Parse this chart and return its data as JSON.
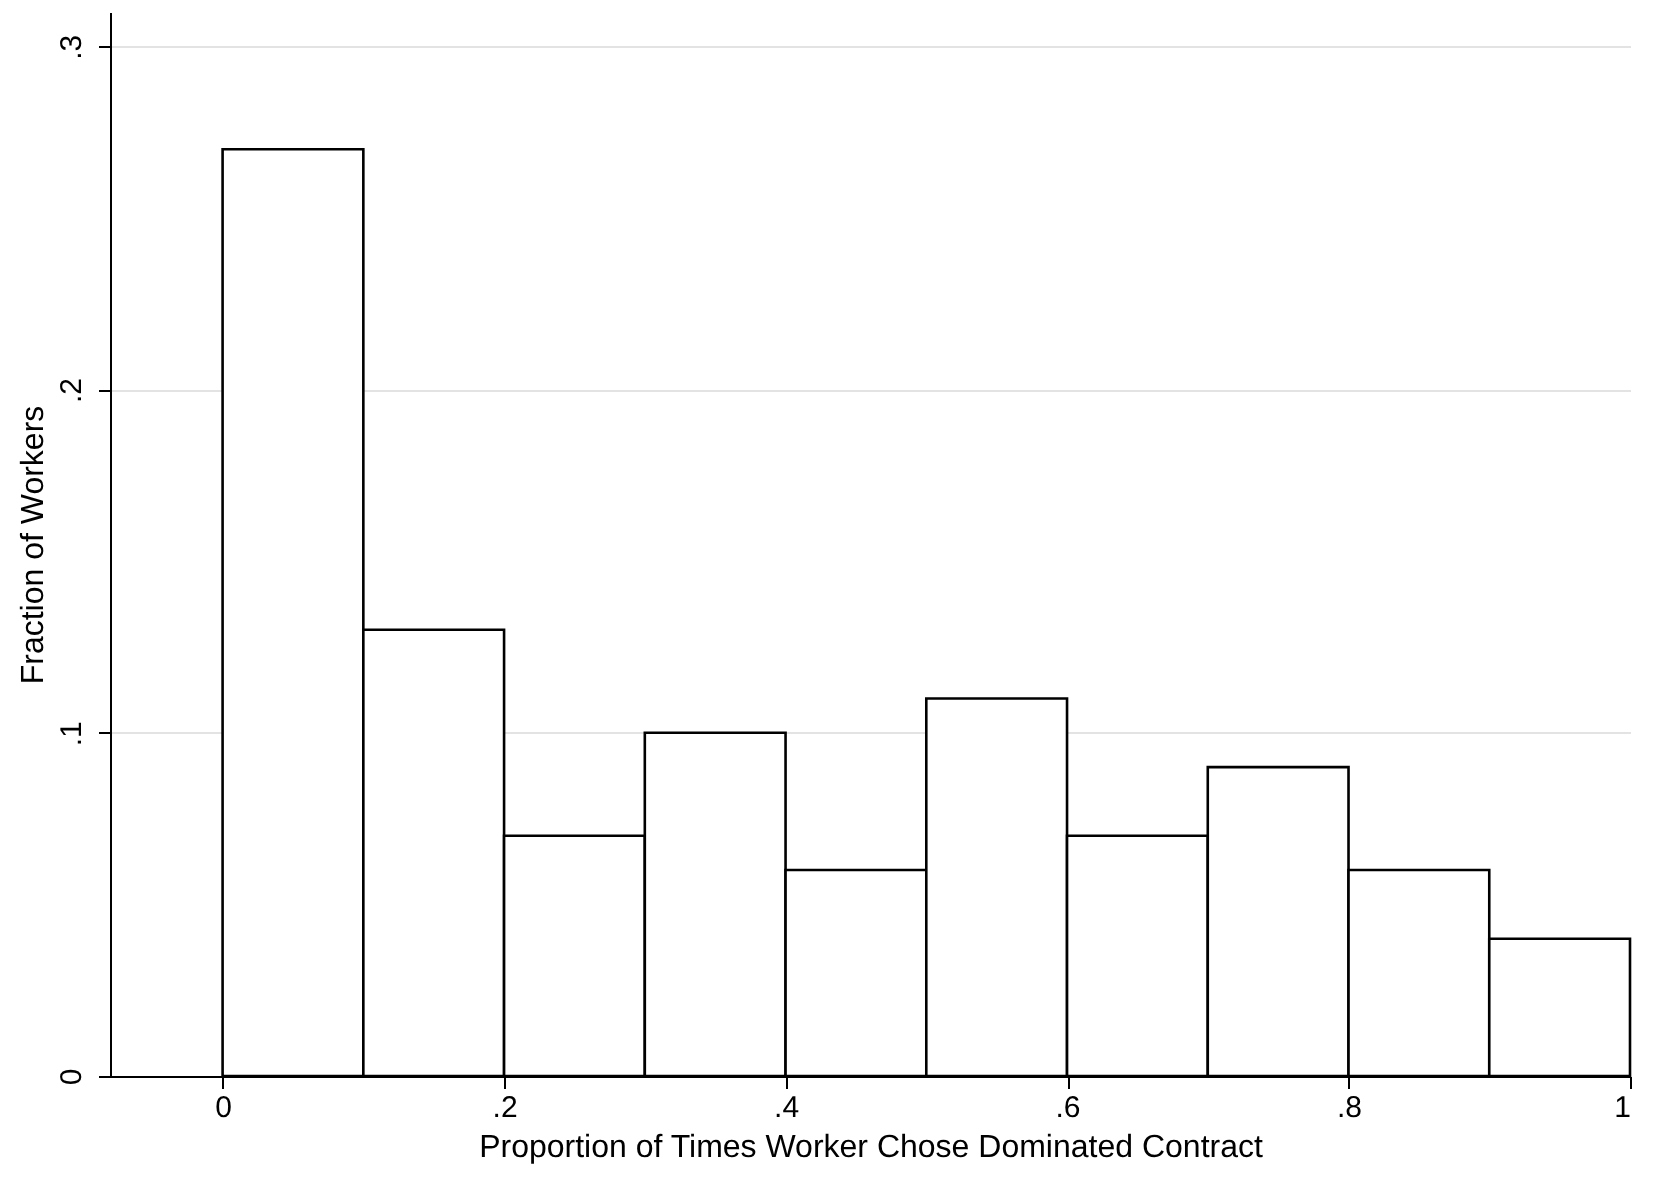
{
  "chart_data": {
    "type": "histogram",
    "xlabel": "Proportion of Times Worker Chose Dominated Contract",
    "ylabel": "Fraction of Workers",
    "bins": [
      0,
      0.1,
      0.2,
      0.3,
      0.4,
      0.5,
      0.6,
      0.7,
      0.8,
      0.9,
      1
    ],
    "values": [
      0.27,
      0.13,
      0.07,
      0.1,
      0.06,
      0.11,
      0.07,
      0.09,
      0.06,
      0.04
    ],
    "color": "#ffffff",
    "xlim": [
      -0.08,
      1
    ],
    "ylim": [
      0,
      0.31
    ],
    "xticks": [
      0,
      {
        "value": 0.2,
        "label": ".2"
      },
      {
        "value": 0.4,
        "label": ".4"
      },
      {
        "value": 0.6,
        "label": ".6"
      },
      {
        "value": 0.8,
        "label": ".8"
      },
      1
    ],
    "yticks": [
      0,
      {
        "value": 0.1,
        "label": ".1"
      },
      {
        "value": 0.2,
        "label": ".2"
      },
      {
        "value": 0.3,
        "label": ".3"
      }
    ],
    "grid": "y"
  }
}
